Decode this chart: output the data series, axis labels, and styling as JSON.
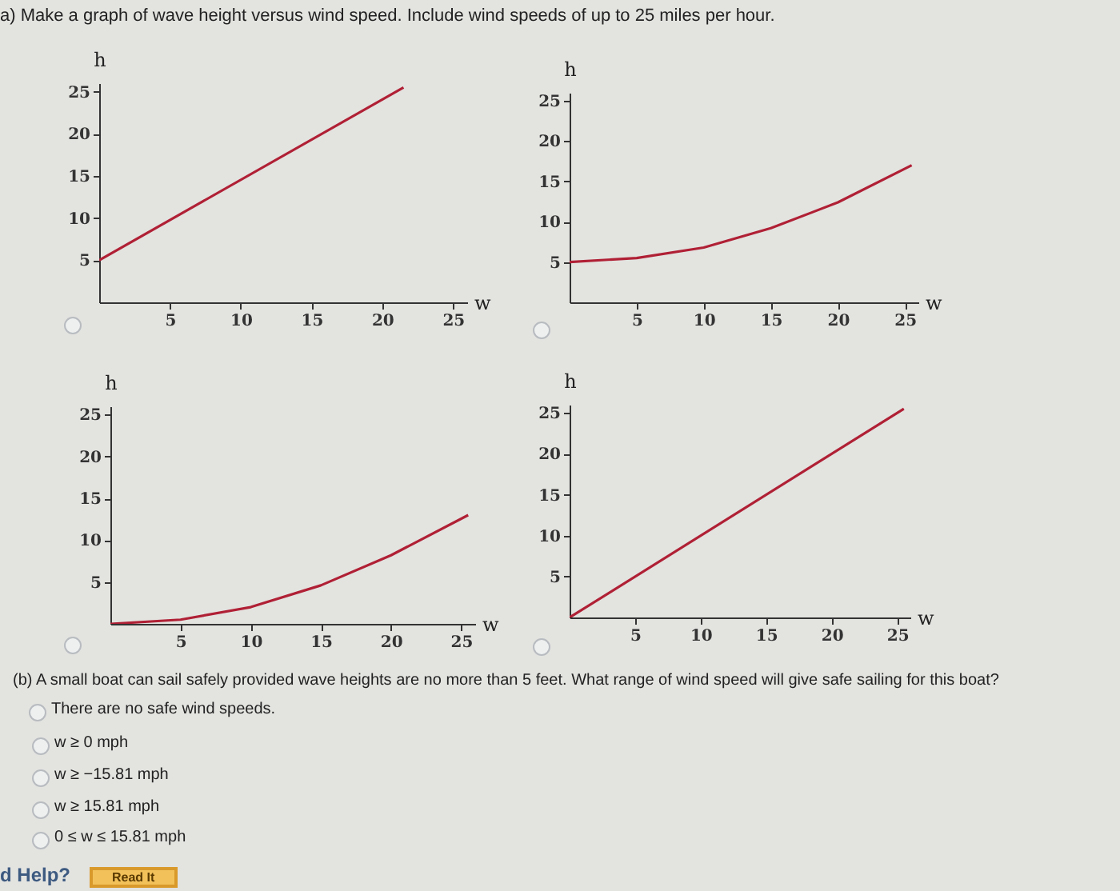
{
  "chart_data": [
    {
      "type": "line",
      "title": "a) Make a graph of wave height versus wind speed. Include wind speeds of up to 25 miles per hour.",
      "xlabel": "w",
      "ylabel": "h",
      "x": [
        0,
        21.5
      ],
      "series": [
        {
          "color": "#b02035",
          "values": [
            5,
            25.5
          ]
        }
      ],
      "xlim": [
        0,
        26
      ],
      "ylim": [
        0,
        26
      ],
      "xticks": [
        5,
        10,
        15,
        20,
        25
      ],
      "yticks": [
        5,
        10,
        15,
        20,
        25
      ],
      "grid": false,
      "marker": "none",
      "line_style": "solid"
    },
    {
      "type": "line",
      "xlabel": "w",
      "ylabel": "h",
      "x": [
        0,
        5,
        10,
        15,
        20,
        25.5
      ],
      "series": [
        {
          "color": "#b02035",
          "values": [
            5,
            5.5,
            6.8,
            9.2,
            12.4,
            17
          ]
        }
      ],
      "xlim": [
        0,
        26
      ],
      "ylim": [
        0,
        26
      ],
      "xticks": [
        5,
        10,
        15,
        20,
        25
      ],
      "yticks": [
        5,
        10,
        15,
        20,
        25
      ],
      "grid": false,
      "marker": "none",
      "line_style": "solid"
    },
    {
      "type": "line",
      "xlabel": "w",
      "ylabel": "h",
      "x": [
        0,
        5,
        10,
        15,
        20,
        25.5
      ],
      "series": [
        {
          "color": "#b02035",
          "values": [
            0,
            0.5,
            2,
            4.6,
            8.2,
            13
          ]
        }
      ],
      "xlim": [
        0,
        26
      ],
      "ylim": [
        0,
        26
      ],
      "xticks": [
        5,
        10,
        15,
        20,
        25
      ],
      "yticks": [
        5,
        10,
        15,
        20,
        25
      ],
      "grid": false,
      "marker": "none",
      "line_style": "solid"
    },
    {
      "type": "line",
      "xlabel": "w",
      "ylabel": "h",
      "x": [
        0,
        25.5
      ],
      "series": [
        {
          "color": "#b02035",
          "values": [
            0,
            25.5
          ]
        }
      ],
      "xlim": [
        0,
        26
      ],
      "ylim": [
        0,
        26
      ],
      "xticks": [
        5,
        10,
        15,
        20,
        25
      ],
      "yticks": [
        5,
        10,
        15,
        20,
        25
      ],
      "grid": false,
      "marker": "none",
      "line_style": "solid"
    },
    {
      "type": "other",
      "title": "(b) A small boat can sail safely provided wave heights are no more than 5 feet. What range of wind speed will give safe sailing for this boat?",
      "annotations": [
        "There are no safe wind speeds.",
        "w ≥ 0 mph",
        "w ≥ −15.81 mph",
        "w ≥ 15.81 mph",
        "0 ≤ w ≤ 15.81 mph",
        "d Help?",
        "Read It"
      ]
    }
  ]
}
